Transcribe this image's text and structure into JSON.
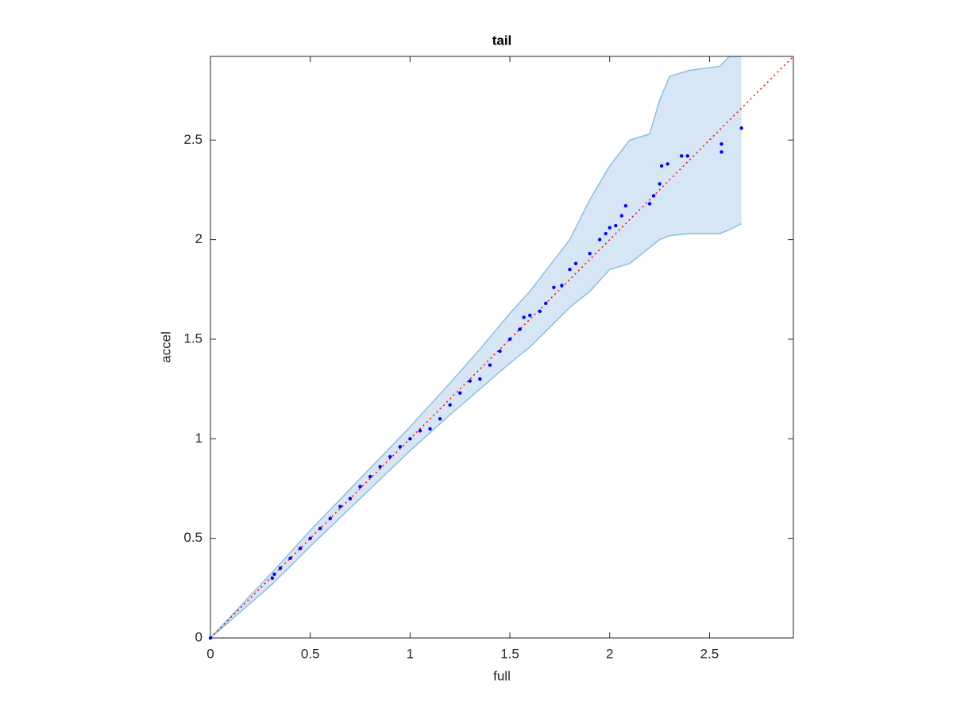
{
  "chart_data": {
    "type": "scatter",
    "title": "tail",
    "x_label": "full",
    "y_label": "accel",
    "xlim": [
      0,
      2.92
    ],
    "ylim": [
      0,
      2.92
    ],
    "xticks": [
      0,
      0.5,
      1,
      1.5,
      2,
      2.5
    ],
    "yticks": [
      0,
      0.5,
      1,
      1.5,
      2,
      2.5
    ],
    "reference_line": {
      "color": "#ff0000",
      "style": "dotted"
    },
    "band": {
      "color": "#d6e6f4",
      "edge_color": "#8cbfe1",
      "x": [
        0,
        0.31,
        0.5,
        0.75,
        1.0,
        1.2,
        1.35,
        1.5,
        1.6,
        1.7,
        1.8,
        1.9,
        2.0,
        2.1,
        2.2,
        2.25,
        2.3,
        2.4,
        2.55,
        2.6,
        2.66
      ],
      "upper": [
        0,
        0.33,
        0.54,
        0.8,
        1.06,
        1.28,
        1.45,
        1.63,
        1.74,
        1.87,
        2.0,
        2.2,
        2.37,
        2.5,
        2.53,
        2.7,
        2.82,
        2.85,
        2.87,
        2.92,
        2.92
      ],
      "lower": [
        0,
        0.27,
        0.46,
        0.7,
        0.94,
        1.12,
        1.25,
        1.38,
        1.46,
        1.56,
        1.66,
        1.74,
        1.85,
        1.88,
        1.96,
        2.0,
        2.02,
        2.03,
        2.03,
        2.05,
        2.08
      ]
    },
    "series": [
      {
        "color": "#0000ff",
        "x": [
          0,
          0.31,
          0.32,
          0.35,
          0.4,
          0.45,
          0.5,
          0.55,
          0.6,
          0.65,
          0.7,
          0.75,
          0.8,
          0.85,
          0.9,
          0.95,
          1.0,
          1.05,
          1.1,
          1.15,
          1.2,
          1.25,
          1.3,
          1.35,
          1.4,
          1.45,
          1.5,
          1.55,
          1.57,
          1.6,
          1.65,
          1.68,
          1.72,
          1.76,
          1.8,
          1.83,
          1.9,
          1.95,
          1.98,
          2.0,
          2.03,
          2.06,
          2.08,
          2.2,
          2.22,
          2.25,
          2.26,
          2.29,
          2.36,
          2.39,
          2.56,
          2.56,
          2.66
        ],
        "values": [
          0,
          0.3,
          0.32,
          0.35,
          0.4,
          0.45,
          0.5,
          0.55,
          0.6,
          0.66,
          0.7,
          0.76,
          0.81,
          0.86,
          0.91,
          0.96,
          1.0,
          1.04,
          1.05,
          1.1,
          1.17,
          1.23,
          1.29,
          1.3,
          1.37,
          1.44,
          1.5,
          1.55,
          1.61,
          1.62,
          1.64,
          1.68,
          1.76,
          1.77,
          1.85,
          1.88,
          1.93,
          2.0,
          2.03,
          2.06,
          2.07,
          2.12,
          2.17,
          2.18,
          2.22,
          2.28,
          2.37,
          2.38,
          2.42,
          2.42,
          2.44,
          2.48,
          2.56
        ]
      }
    ]
  }
}
